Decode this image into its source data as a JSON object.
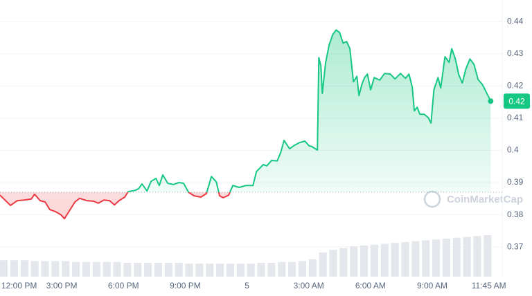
{
  "chart_data": {
    "type": "line",
    "color_up": "#16c784",
    "color_down": "#ea3943",
    "baseline": 0.387,
    "xlim": [
      0,
      24.4
    ],
    "ylim": [
      0.3608,
      0.4467
    ],
    "yticks": [
      0.37,
      0.38,
      0.39,
      0.4,
      0.41,
      0.42,
      0.43,
      0.44
    ],
    "xticks": [
      {
        "value": 0,
        "label": "12:00 PM"
      },
      {
        "value": 3,
        "label": "3:00 PM"
      },
      {
        "value": 6,
        "label": "6:00 PM"
      },
      {
        "value": 9,
        "label": "9:00 PM"
      },
      {
        "value": 12,
        "label": "5"
      },
      {
        "value": 15,
        "label": "3:00 AM"
      },
      {
        "value": 18,
        "label": "6:00 AM"
      },
      {
        "value": 21,
        "label": "9:00 AM"
      },
      {
        "value": 23.75,
        "label": "11:45 AM"
      }
    ],
    "grid": true,
    "x": [
      0,
      0.27,
      0.51,
      0.84,
      1.18,
      1.52,
      1.68,
      1.95,
      2.19,
      2.42,
      2.69,
      2.96,
      3.13,
      3.37,
      3.64,
      3.87,
      4.21,
      4.55,
      4.78,
      5.05,
      5.32,
      5.56,
      5.79,
      6.06,
      6.23,
      6.57,
      6.73,
      6.9,
      7.14,
      7.34,
      7.58,
      7.74,
      7.91,
      8.15,
      8.42,
      8.69,
      8.92,
      9.16,
      9.43,
      9.76,
      10.03,
      10.27,
      10.51,
      10.67,
      10.84,
      11.11,
      11.31,
      11.62,
      11.95,
      12.29,
      12.46,
      12.79,
      12.96,
      13.2,
      13.47,
      13.64,
      13.8,
      14.07,
      14.31,
      14.55,
      14.81,
      15.02,
      15.15,
      15.32,
      15.42,
      15.49,
      15.59,
      15.66,
      15.82,
      15.99,
      16.16,
      16.33,
      16.5,
      16.67,
      16.84,
      17.0,
      17.17,
      17.34,
      17.44,
      17.58,
      17.71,
      17.85,
      18.01,
      18.18,
      18.45,
      18.69,
      18.96,
      19.19,
      19.46,
      19.7,
      19.87,
      20.03,
      20.13,
      20.27,
      20.4,
      20.61,
      20.81,
      20.94,
      21.08,
      21.28,
      21.41,
      21.62,
      21.82,
      21.95,
      22.12,
      22.29,
      22.46,
      22.63,
      22.83,
      23.03,
      23.23,
      23.43,
      23.57,
      23.84
    ],
    "values": [
      0.3861,
      0.3844,
      0.3829,
      0.3844,
      0.3846,
      0.3849,
      0.3864,
      0.3844,
      0.384,
      0.3816,
      0.381,
      0.38,
      0.3788,
      0.3812,
      0.384,
      0.3851,
      0.3844,
      0.3842,
      0.3836,
      0.3846,
      0.3844,
      0.3831,
      0.3844,
      0.3855,
      0.3872,
      0.3876,
      0.3881,
      0.3896,
      0.3874,
      0.3904,
      0.3913,
      0.3891,
      0.3924,
      0.3898,
      0.3894,
      0.39,
      0.3898,
      0.387,
      0.3859,
      0.3855,
      0.3866,
      0.3919,
      0.3902,
      0.3859,
      0.3853,
      0.3861,
      0.3891,
      0.3885,
      0.3891,
      0.3891,
      0.3934,
      0.3956,
      0.3952,
      0.3969,
      0.3967,
      0.3994,
      0.4031,
      0.4005,
      0.4016,
      0.4024,
      0.4029,
      0.4014,
      0.4012,
      0.4005,
      0.4001,
      0.4288,
      0.4263,
      0.4177,
      0.4273,
      0.4327,
      0.4359,
      0.4374,
      0.4366,
      0.4333,
      0.4338,
      0.4316,
      0.4213,
      0.423,
      0.417,
      0.4205,
      0.4226,
      0.4237,
      0.4188,
      0.4226,
      0.4218,
      0.4239,
      0.4237,
      0.4222,
      0.4239,
      0.4224,
      0.4237,
      0.4196,
      0.4123,
      0.4134,
      0.4112,
      0.4112,
      0.4102,
      0.4085,
      0.4188,
      0.4226,
      0.4194,
      0.4291,
      0.4273,
      0.4316,
      0.4284,
      0.4235,
      0.4209,
      0.4252,
      0.4284,
      0.4267,
      0.422,
      0.4205,
      0.4188,
      0.4153
    ],
    "last_price_label": "0.42",
    "volume": {
      "color": "#e4e7ec",
      "x": [
        0,
        0.5,
        1,
        1.5,
        2,
        2.5,
        3,
        3.5,
        4,
        4.5,
        5,
        5.5,
        6,
        6.5,
        7,
        7.5,
        8,
        8.5,
        9,
        9.5,
        10,
        10.5,
        11,
        11.5,
        12,
        12.5,
        13,
        13.5,
        14,
        14.5,
        15,
        15.5,
        16,
        16.5,
        17,
        17.5,
        18,
        18.5,
        19,
        19.5,
        20,
        20.5,
        21,
        21.5,
        22,
        22.5,
        23,
        23.5
      ],
      "values": [
        19,
        19,
        19,
        18,
        18,
        18,
        18,
        17,
        17,
        17,
        17,
        17,
        16,
        16,
        16,
        16,
        16,
        16,
        15,
        15,
        15,
        15,
        15,
        15,
        15,
        16,
        16,
        17,
        17,
        18,
        20,
        28,
        31,
        33,
        35,
        36,
        37,
        38,
        39,
        40,
        41,
        42,
        43,
        44,
        45,
        46,
        47,
        48
      ]
    },
    "watermark": "CoinMarketCap"
  }
}
